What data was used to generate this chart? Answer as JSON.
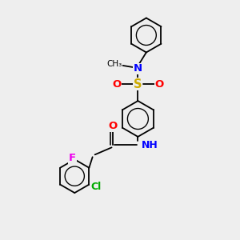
{
  "bg_color": "#eeeeee",
  "bond_color": "#000000",
  "atom_colors": {
    "N": "#0000ff",
    "O": "#ff0000",
    "S": "#ccaa00",
    "F": "#ee00ee",
    "Cl": "#00aa00",
    "C": "#000000",
    "H": "#000000"
  },
  "figsize": [
    3.0,
    3.0
  ],
  "dpi": 100,
  "xlim": [
    0,
    10
  ],
  "ylim": [
    0,
    10
  ]
}
